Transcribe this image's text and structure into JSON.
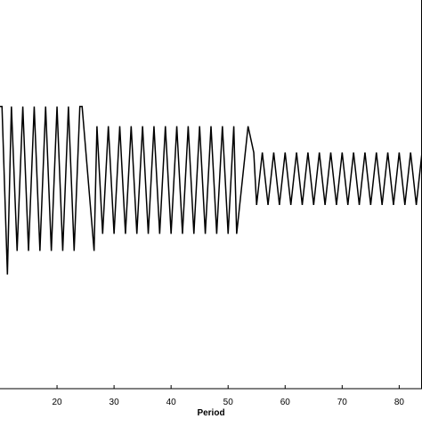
{
  "chart_data": {
    "type": "line",
    "xlabel": "Period",
    "xlim": [
      10,
      84
    ],
    "ylim": [
      -1.6,
      0.9
    ],
    "x_ticks": [
      20,
      30,
      40,
      50,
      60,
      70,
      80
    ],
    "line_color": "#000000",
    "series": [
      {
        "segments": [
          {
            "x_start": 10.0,
            "x_end": 11.0,
            "kind": "transient",
            "peak": 0.55,
            "trough": -0.55
          },
          {
            "x_start": 11.0,
            "x_end": 24.0,
            "period": 2.0,
            "peak": 0.55,
            "trough": -0.55
          },
          {
            "x_start": 24.0,
            "x_end": 27.0,
            "kind": "transition",
            "peak": 0.55,
            "trough": -0.55
          },
          {
            "x_start": 27.0,
            "x_end": 51.0,
            "period": 2.0,
            "peak": 0.4,
            "trough": -0.42
          },
          {
            "x_start": 51.0,
            "x_end": 54.5,
            "kind": "transition",
            "peak": 0.4,
            "trough": -0.2
          },
          {
            "x_start": 54.5,
            "x_end": 84.0,
            "period": 2.0,
            "peak": 0.2,
            "trough": -0.2
          }
        ],
        "initial_dip": -0.73
      }
    ]
  }
}
